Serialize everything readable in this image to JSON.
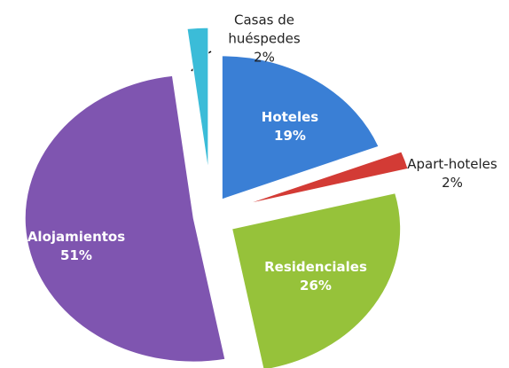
{
  "chart_data": {
    "type": "pie",
    "categories": [
      "Hoteles",
      "Apart-hoteles",
      "Residenciales",
      "Alojamientos",
      "Casas de huéspedes"
    ],
    "values": [
      19,
      2,
      26,
      51,
      2
    ],
    "value_labels": [
      "19%",
      "2%",
      "26%",
      "51%",
      "2%"
    ],
    "colors": [
      "#3a7fd5",
      "#d33b35",
      "#96c23a",
      "#7f55b0",
      "#3bbcd8"
    ]
  }
}
